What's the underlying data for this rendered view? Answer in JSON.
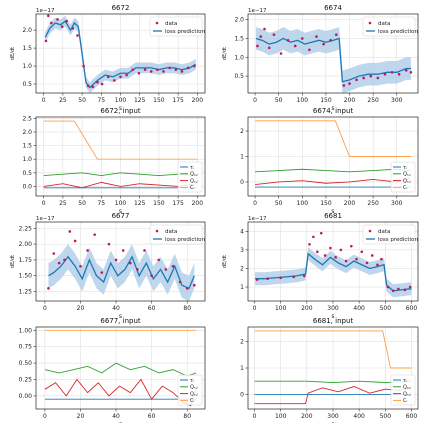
{
  "colors": {
    "data": "#c2185b",
    "prediction": "#1f77b4",
    "band": "#aecde9",
    "tau": "#1f77b4",
    "qsi": "#2ca02c",
    "qsl": "#d62728",
    "ci": "#ff9f4a",
    "grid": "#d9d9d9"
  },
  "chart_data": [
    {
      "type": "line",
      "title": "6672",
      "xlabel": "s",
      "ylabel": "dE/dt",
      "yexp": "1e−17",
      "xlim": [
        -10,
        210
      ],
      "ylim": [
        0.25,
        2.45
      ],
      "xticks": [
        0,
        25,
        50,
        75,
        100,
        125,
        150,
        175,
        200
      ],
      "yticks": [
        0.5,
        1.0,
        1.5,
        2.0
      ],
      "ytick_labels": [
        "0.5",
        "1.0",
        "1.5",
        "2.0"
      ],
      "legend": {
        "loc": "top-right",
        "entries": [
          "data",
          "loss prediction"
        ]
      },
      "series_x": [
        2,
        8,
        15,
        22,
        28,
        35,
        40,
        45,
        50,
        55,
        60,
        70,
        80,
        90,
        100,
        110,
        120,
        130,
        140,
        150,
        160,
        170,
        180,
        190,
        198
      ],
      "prediction": [
        1.8,
        2.05,
        2.2,
        2.15,
        2.25,
        2.0,
        2.2,
        2.1,
        1.35,
        0.55,
        0.4,
        0.6,
        0.75,
        0.7,
        0.8,
        0.8,
        0.95,
        0.95,
        0.95,
        0.9,
        0.95,
        0.95,
        0.9,
        0.95,
        1.05
      ],
      "band_half": 0.15,
      "scatter": [
        [
          3,
          1.7
        ],
        [
          6,
          2.4
        ],
        [
          10,
          2.2
        ],
        [
          18,
          2.3
        ],
        [
          24,
          2.1
        ],
        [
          30,
          2.25
        ],
        [
          38,
          2.05
        ],
        [
          44,
          1.85
        ],
        [
          52,
          1.0
        ],
        [
          58,
          0.45
        ],
        [
          64,
          0.42
        ],
        [
          70,
          0.55
        ],
        [
          76,
          0.5
        ],
        [
          84,
          0.7
        ],
        [
          92,
          0.6
        ],
        [
          100,
          0.7
        ],
        [
          108,
          0.75
        ],
        [
          116,
          0.9
        ],
        [
          124,
          0.8
        ],
        [
          132,
          0.9
        ],
        [
          140,
          0.85
        ],
        [
          148,
          0.9
        ],
        [
          156,
          0.85
        ],
        [
          164,
          0.95
        ],
        [
          172,
          0.9
        ],
        [
          180,
          0.85
        ],
        [
          188,
          0.95
        ],
        [
          196,
          1.0
        ]
      ]
    },
    {
      "type": "line",
      "title": "6674",
      "xlabel": "s",
      "ylabel": "dE/dt",
      "yexp": "1e−17",
      "xlim": [
        -15,
        345
      ],
      "ylim": [
        0.05,
        2.15
      ],
      "xticks": [
        0,
        50,
        100,
        150,
        200,
        250,
        300
      ],
      "yticks": [
        0.5,
        1.0,
        1.5,
        2.0
      ],
      "ytick_labels": [
        "0.5",
        "1.0",
        "1.5",
        "2.0"
      ],
      "legend": {
        "loc": "top-right",
        "entries": [
          "data",
          "loss prediction"
        ]
      },
      "series_x": [
        2,
        15,
        30,
        45,
        60,
        75,
        90,
        105,
        120,
        135,
        150,
        165,
        178,
        185,
        200,
        220,
        240,
        260,
        280,
        300,
        320,
        330
      ],
      "prediction": [
        1.5,
        1.45,
        1.35,
        1.4,
        1.5,
        1.4,
        1.45,
        1.35,
        1.4,
        1.45,
        1.4,
        1.45,
        1.5,
        0.35,
        0.4,
        0.5,
        0.55,
        0.55,
        0.6,
        0.6,
        0.7,
        0.7
      ],
      "band_half": 0.3,
      "scatter": [
        [
          5,
          1.3
        ],
        [
          12,
          1.55
        ],
        [
          20,
          1.75
        ],
        [
          30,
          1.25
        ],
        [
          40,
          1.6
        ],
        [
          55,
          1.1
        ],
        [
          70,
          1.45
        ],
        [
          85,
          1.3
        ],
        [
          100,
          1.5
        ],
        [
          115,
          1.2
        ],
        [
          130,
          1.55
        ],
        [
          145,
          1.35
        ],
        [
          160,
          1.45
        ],
        [
          172,
          1.6
        ],
        [
          188,
          0.25
        ],
        [
          200,
          0.3
        ],
        [
          215,
          0.4
        ],
        [
          230,
          0.45
        ],
        [
          245,
          0.5
        ],
        [
          260,
          0.45
        ],
        [
          275,
          0.55
        ],
        [
          290,
          0.6
        ],
        [
          305,
          0.55
        ],
        [
          320,
          0.65
        ],
        [
          330,
          0.6
        ]
      ]
    },
    {
      "type": "line",
      "title": "6672, input",
      "xlabel": "s",
      "xlim": [
        -10,
        210
      ],
      "ylim": [
        -0.35,
        2.55
      ],
      "xticks": [
        0,
        25,
        50,
        75,
        100,
        125,
        150,
        175,
        200
      ],
      "yticks": [
        0.0,
        0.5,
        1.0,
        1.5,
        2.0,
        2.5
      ],
      "ytick_labels": [
        "0.0",
        "0.5",
        "1.0",
        "1.5",
        "2.0",
        "2.5"
      ],
      "legend": {
        "loc": "right",
        "entries": [
          "τᵢ",
          "Qₛ,ᵢ",
          "Qₛ,ₗ",
          "Cᵢ"
        ]
      },
      "lines": [
        {
          "key": "ci",
          "x": [
            0,
            40,
            70,
            200
          ],
          "y": [
            2.4,
            2.4,
            1.0,
            1.0
          ]
        },
        {
          "key": "qsi",
          "x": [
            0,
            25,
            50,
            75,
            100,
            125,
            150,
            175,
            200
          ],
          "y": [
            0.4,
            0.45,
            0.5,
            0.4,
            0.5,
            0.45,
            0.4,
            0.45,
            0.4
          ]
        },
        {
          "key": "qsl",
          "x": [
            0,
            25,
            50,
            75,
            100,
            125,
            150,
            175,
            200
          ],
          "y": [
            0.0,
            0.1,
            -0.05,
            0.15,
            0.0,
            0.1,
            0.05,
            0.0,
            0.1
          ]
        },
        {
          "key": "tau",
          "x": [
            0,
            200
          ],
          "y": [
            -0.05,
            -0.05
          ]
        }
      ]
    },
    {
      "type": "line",
      "title": "6674, input",
      "xlabel": "s",
      "xlim": [
        -15,
        345
      ],
      "ylim": [
        -0.55,
        2.55
      ],
      "xticks": [
        0,
        50,
        100,
        150,
        200,
        250,
        300
      ],
      "yticks": [
        0,
        1,
        2
      ],
      "ytick_labels": [
        "0",
        "1",
        "2"
      ],
      "legend": {
        "loc": "right",
        "entries": [
          "τᵢ",
          "Qₛ,ᵢ",
          "Qₛ,ₗ",
          "Cᵢ"
        ]
      },
      "lines": [
        {
          "key": "ci",
          "x": [
            0,
            170,
            200,
            330
          ],
          "y": [
            2.4,
            2.4,
            1.0,
            1.0
          ]
        },
        {
          "key": "qsi",
          "x": [
            0,
            50,
            100,
            150,
            200,
            250,
            300,
            330
          ],
          "y": [
            0.4,
            0.45,
            0.5,
            0.45,
            0.4,
            0.45,
            0.5,
            0.45
          ]
        },
        {
          "key": "qsl",
          "x": [
            0,
            50,
            100,
            150,
            200,
            250,
            300,
            330
          ],
          "y": [
            -0.1,
            0.0,
            0.05,
            -0.05,
            0.0,
            0.1,
            0.0,
            0.15
          ]
        },
        {
          "key": "tau",
          "x": [
            0,
            330
          ],
          "y": [
            -0.2,
            -0.2
          ]
        }
      ]
    },
    {
      "type": "line",
      "title": "6677",
      "xlabel": "s",
      "ylabel": "dE/dt",
      "yexp": "1e−17",
      "xlim": [
        -5,
        90
      ],
      "ylim": [
        1.1,
        2.35
      ],
      "xticks": [
        0,
        20,
        40,
        60,
        80
      ],
      "yticks": [
        1.25,
        1.5,
        1.75,
        2.0,
        2.25
      ],
      "ytick_labels": [
        "1.25",
        "1.50",
        "1.75",
        "2.00",
        "2.25"
      ],
      "legend": {
        "loc": "top-right",
        "entries": [
          "data",
          "loss prediction"
        ]
      },
      "series_x": [
        2,
        5,
        9,
        13,
        17,
        21,
        25,
        29,
        33,
        37,
        41,
        45,
        49,
        53,
        57,
        61,
        65,
        69,
        73,
        77,
        81,
        84
      ],
      "prediction": [
        1.5,
        1.55,
        1.65,
        1.8,
        1.65,
        1.45,
        1.75,
        1.5,
        1.4,
        1.7,
        1.5,
        1.6,
        1.8,
        1.5,
        1.7,
        1.45,
        1.6,
        1.4,
        1.65,
        1.35,
        1.3,
        1.5
      ],
      "band_half": 0.2,
      "scatter": [
        [
          2,
          1.3
        ],
        [
          5,
          1.85
        ],
        [
          8,
          1.7
        ],
        [
          11,
          1.75
        ],
        [
          14,
          2.2
        ],
        [
          17,
          2.05
        ],
        [
          20,
          1.65
        ],
        [
          24,
          1.9
        ],
        [
          28,
          2.15
        ],
        [
          32,
          1.55
        ],
        [
          36,
          2.0
        ],
        [
          40,
          1.75
        ],
        [
          44,
          1.9
        ],
        [
          48,
          1.7
        ],
        [
          52,
          1.6
        ],
        [
          56,
          1.9
        ],
        [
          60,
          1.5
        ],
        [
          64,
          1.75
        ],
        [
          68,
          1.6
        ],
        [
          72,
          1.65
        ],
        [
          76,
          1.4
        ],
        [
          80,
          1.3
        ],
        [
          84,
          1.35
        ]
      ]
    },
    {
      "type": "line",
      "title": "6681",
      "xlabel": "s",
      "ylabel": "dE/dt",
      "yexp": "1e−17",
      "xlim": [
        -25,
        625
      ],
      "ylim": [
        0.25,
        4.5
      ],
      "xticks": [
        0,
        100,
        200,
        300,
        400,
        500,
        600
      ],
      "yticks": [
        1,
        2,
        3,
        4
      ],
      "ytick_labels": [
        "1",
        "2",
        "3",
        "4"
      ],
      "legend": {
        "loc": "top-right",
        "entries": [
          "data",
          "loss prediction"
        ]
      },
      "series_x": [
        2,
        40,
        80,
        120,
        160,
        195,
        205,
        230,
        260,
        290,
        320,
        350,
        380,
        410,
        440,
        470,
        495,
        505,
        530,
        560,
        590,
        600
      ],
      "prediction": [
        1.45,
        1.45,
        1.5,
        1.55,
        1.6,
        1.7,
        2.8,
        2.5,
        2.2,
        2.6,
        2.3,
        2.1,
        2.4,
        2.2,
        2.0,
        2.1,
        2.2,
        1.1,
        0.8,
        0.85,
        0.9,
        0.9
      ],
      "band_half": 0.35,
      "scatter": [
        [
          10,
          1.4
        ],
        [
          50,
          1.45
        ],
        [
          100,
          1.5
        ],
        [
          150,
          1.55
        ],
        [
          190,
          1.6
        ],
        [
          210,
          3.3
        ],
        [
          225,
          3.7
        ],
        [
          240,
          2.9
        ],
        [
          255,
          3.9
        ],
        [
          270,
          2.7
        ],
        [
          290,
          3.1
        ],
        [
          310,
          2.6
        ],
        [
          330,
          3.0
        ],
        [
          350,
          2.4
        ],
        [
          370,
          3.2
        ],
        [
          390,
          2.5
        ],
        [
          410,
          2.9
        ],
        [
          430,
          2.3
        ],
        [
          450,
          2.7
        ],
        [
          470,
          2.2
        ],
        [
          485,
          2.5
        ],
        [
          510,
          1.0
        ],
        [
          530,
          0.8
        ],
        [
          550,
          0.9
        ],
        [
          575,
          0.85
        ],
        [
          595,
          1.0
        ]
      ]
    },
    {
      "type": "line",
      "title": "6677, input",
      "xlabel": "s",
      "xlim": [
        -5,
        90
      ],
      "ylim": [
        -0.2,
        1.05
      ],
      "xticks": [
        0,
        20,
        40,
        60,
        80
      ],
      "yticks": [
        0.0,
        0.25,
        0.5,
        0.75,
        1.0
      ],
      "ytick_labels": [
        "0.00",
        "0.25",
        "0.50",
        "0.75",
        "1.00"
      ],
      "legend": {
        "loc": "right",
        "entries": [
          "τᵢ",
          "Qₛ,ᵢ",
          "Qₛ,ₗ",
          "Cᵢ"
        ]
      },
      "lines": [
        {
          "key": "ci",
          "x": [
            0,
            85
          ],
          "y": [
            1.0,
            1.0
          ]
        },
        {
          "key": "qsi",
          "x": [
            0,
            8,
            16,
            24,
            32,
            40,
            48,
            56,
            64,
            72,
            80,
            85
          ],
          "y": [
            0.4,
            0.35,
            0.4,
            0.45,
            0.35,
            0.5,
            0.4,
            0.45,
            0.35,
            0.4,
            0.3,
            0.35
          ]
        },
        {
          "key": "qsl",
          "x": [
            0,
            6,
            12,
            18,
            24,
            30,
            36,
            42,
            48,
            54,
            60,
            66,
            72,
            78,
            82,
            85
          ],
          "y": [
            0.1,
            0.2,
            0.0,
            0.25,
            0.05,
            0.2,
            0.0,
            0.15,
            0.05,
            0.25,
            -0.05,
            0.15,
            0.05,
            -0.1,
            -0.15,
            0.1
          ]
        },
        {
          "key": "tau",
          "x": [
            0,
            85
          ],
          "y": [
            -0.05,
            -0.05
          ]
        }
      ]
    },
    {
      "type": "line",
      "title": "6681, input",
      "xlabel": "s",
      "xlim": [
        -25,
        625
      ],
      "ylim": [
        -0.55,
        2.55
      ],
      "xticks": [
        0,
        100,
        200,
        300,
        400,
        500,
        600
      ],
      "yticks": [
        0,
        1,
        2
      ],
      "ytick_labels": [
        "0",
        "1",
        "2"
      ],
      "legend": {
        "loc": "right",
        "entries": [
          "τᵢ",
          "Qₛ,ᵢ",
          "Qₛ,ₗ",
          "Cᵢ"
        ]
      },
      "lines": [
        {
          "key": "ci",
          "x": [
            0,
            490,
            520,
            600
          ],
          "y": [
            2.4,
            2.4,
            1.0,
            1.0
          ]
        },
        {
          "key": "qsi",
          "x": [
            0,
            195,
            200,
            300,
            400,
            500,
            600
          ],
          "y": [
            0.5,
            0.5,
            0.5,
            0.45,
            0.5,
            0.45,
            0.5
          ]
        },
        {
          "key": "qsl",
          "x": [
            0,
            195,
            205,
            260,
            320,
            380,
            440,
            500,
            560,
            600
          ],
          "y": [
            -0.35,
            -0.35,
            0.05,
            0.25,
            0.1,
            0.3,
            0.05,
            0.2,
            0.15,
            0.25
          ]
        },
        {
          "key": "tau",
          "x": [
            0,
            600
          ],
          "y": [
            0.0,
            0.0
          ]
        }
      ]
    }
  ]
}
